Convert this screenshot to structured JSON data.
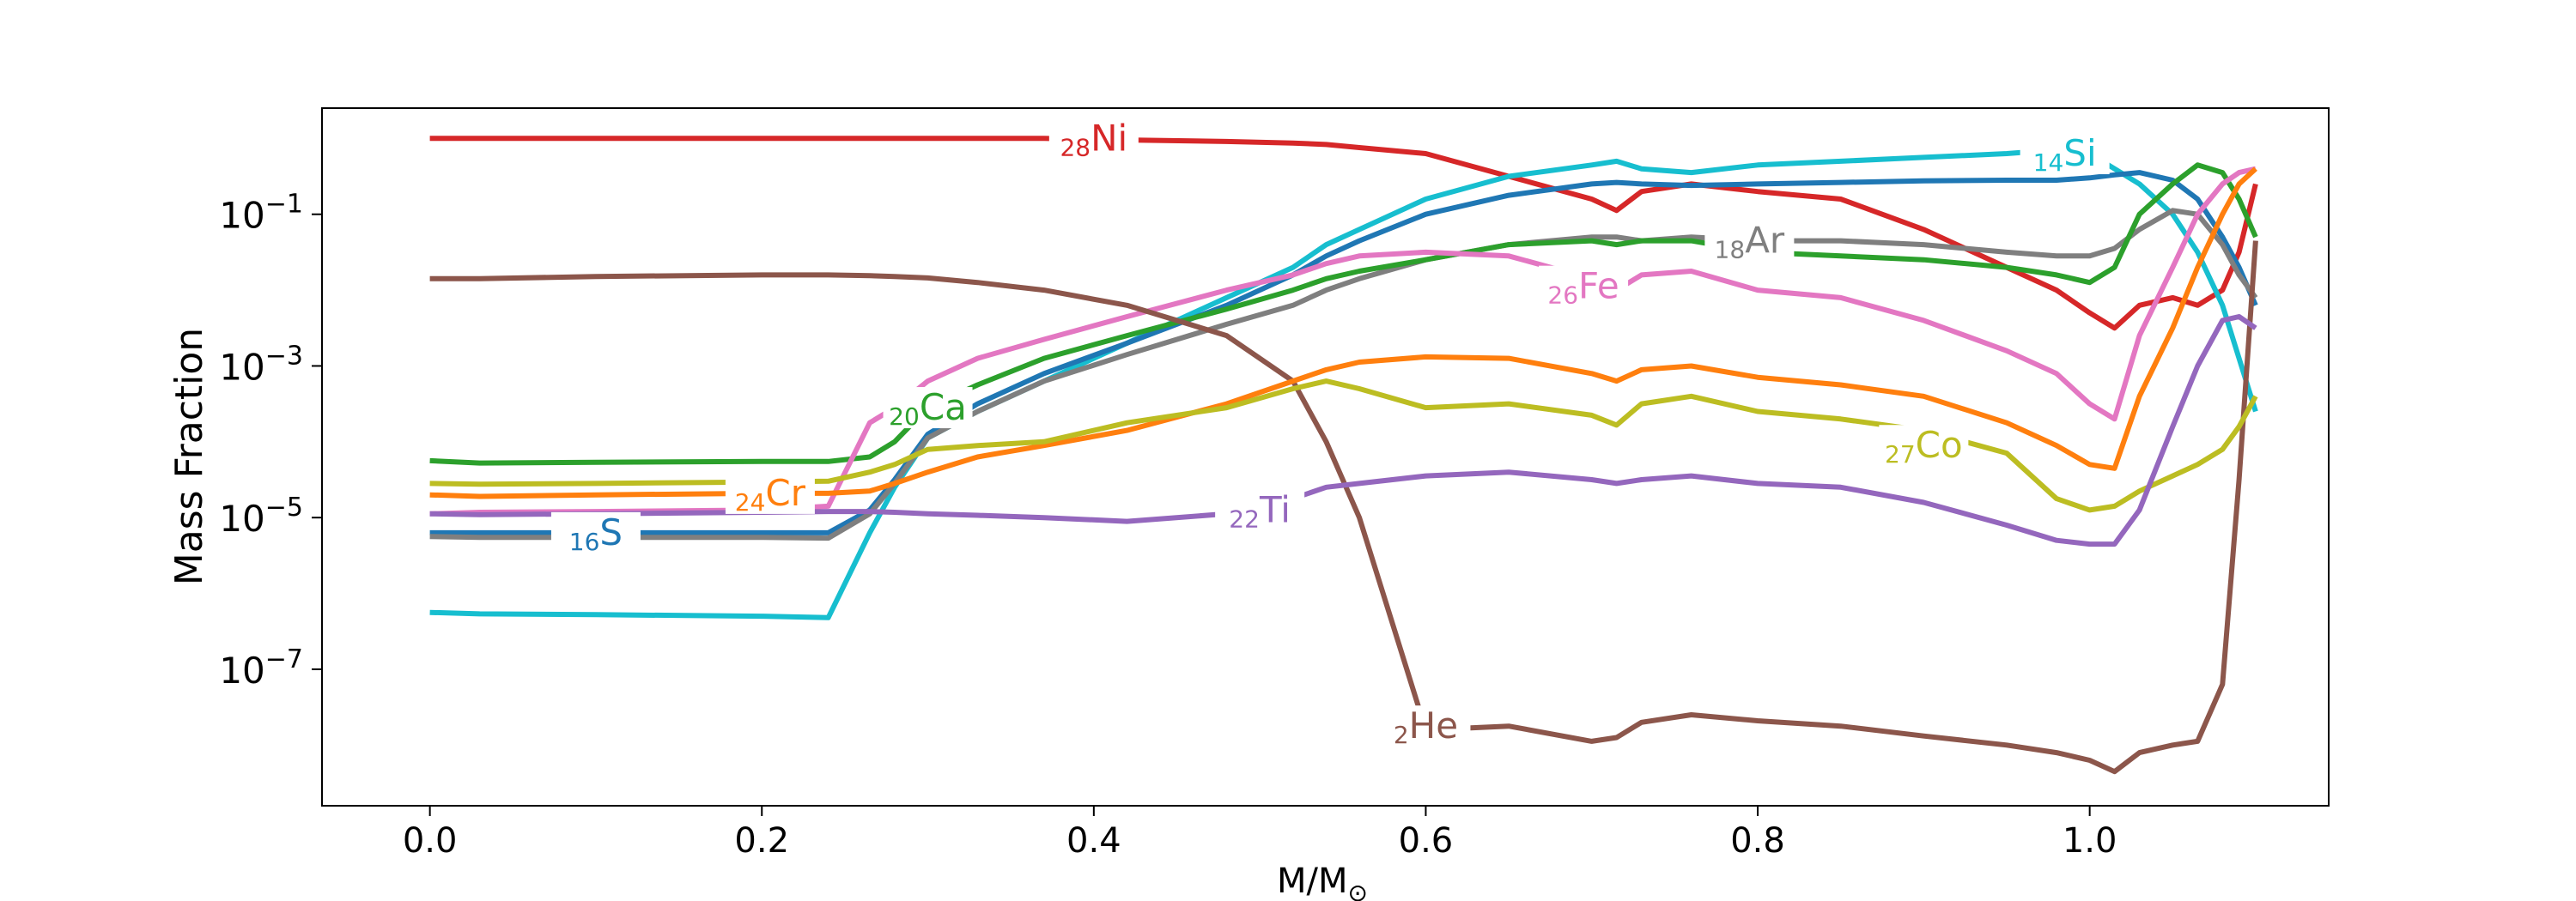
{
  "chart_data": {
    "type": "line",
    "title": "",
    "xlabel": "M/M",
    "xlabel_sub": "⊙",
    "ylabel": "Mass Fraction",
    "yscale": "log",
    "xlim": [
      -0.065,
      1.144
    ],
    "ylim_exp": [
      -8.8,
      0.4
    ],
    "grid": false,
    "x_ticks": [
      0.0,
      0.2,
      0.4,
      0.6,
      0.8,
      1.0
    ],
    "x_tick_labels": [
      "0.0",
      "0.2",
      "0.4",
      "0.6",
      "0.8",
      "1.0"
    ],
    "y_ticks_exp": [
      -1,
      -3,
      -5,
      -7
    ],
    "y_tick_base": "10",
    "y_tick_exps": [
      "−1",
      "−3",
      "−5",
      "−7"
    ],
    "x": [
      0.0,
      0.03,
      0.1,
      0.2,
      0.24,
      0.265,
      0.28,
      0.3,
      0.33,
      0.37,
      0.42,
      0.48,
      0.52,
      0.54,
      0.56,
      0.6,
      0.65,
      0.7,
      0.715,
      0.73,
      0.76,
      0.8,
      0.85,
      0.9,
      0.95,
      0.98,
      1.0,
      1.015,
      1.03,
      1.05,
      1.065,
      1.08,
      1.09,
      1.1
    ],
    "series": [
      {
        "name": "Ni",
        "sym": "Ni",
        "z": "28",
        "color": "#d62728",
        "values": [
          0.0,
          0.0,
          0.0,
          0.0,
          0.0,
          0.0,
          0.0,
          0.0,
          0.0,
          0.0,
          -0.02,
          -0.04,
          -0.06,
          -0.08,
          -0.12,
          -0.2,
          -0.5,
          -0.8,
          -0.95,
          -0.7,
          -0.6,
          -0.7,
          -0.8,
          -1.2,
          -1.7,
          -2.0,
          -2.3,
          -2.5,
          -2.2,
          -2.1,
          -2.2,
          -2.0,
          -1.5,
          -0.6
        ]
      },
      {
        "name": "Si",
        "sym": "Si",
        "z": "14",
        "color": "#17becf",
        "values": [
          -6.25,
          -6.27,
          -6.28,
          -6.3,
          -6.32,
          -5.2,
          -4.6,
          -3.95,
          -3.6,
          -3.2,
          -2.7,
          -2.1,
          -1.7,
          -1.4,
          -1.2,
          -0.8,
          -0.5,
          -0.35,
          -0.3,
          -0.4,
          -0.45,
          -0.35,
          -0.3,
          -0.25,
          -0.2,
          -0.15,
          -0.2,
          -0.4,
          -0.6,
          -1.0,
          -1.5,
          -2.2,
          -2.9,
          -3.6
        ]
      },
      {
        "name": "S",
        "sym": "S",
        "z": "16",
        "color": "#1f77b4",
        "values": [
          -5.2,
          -5.2,
          -5.2,
          -5.2,
          -5.2,
          -4.9,
          -4.5,
          -3.9,
          -3.5,
          -3.1,
          -2.7,
          -2.2,
          -1.8,
          -1.55,
          -1.35,
          -1.0,
          -0.75,
          -0.6,
          -0.58,
          -0.6,
          -0.62,
          -0.6,
          -0.58,
          -0.56,
          -0.55,
          -0.55,
          -0.52,
          -0.48,
          -0.45,
          -0.55,
          -0.8,
          -1.3,
          -1.7,
          -2.2
        ]
      },
      {
        "name": "Ar",
        "sym": "Ar",
        "z": "18",
        "color": "#7f7f7f",
        "values": [
          -5.25,
          -5.26,
          -5.26,
          -5.26,
          -5.27,
          -4.95,
          -4.55,
          -3.95,
          -3.6,
          -3.2,
          -2.85,
          -2.45,
          -2.2,
          -2.0,
          -1.85,
          -1.6,
          -1.4,
          -1.3,
          -1.3,
          -1.35,
          -1.3,
          -1.35,
          -1.35,
          -1.4,
          -1.5,
          -1.55,
          -1.55,
          -1.45,
          -1.2,
          -0.95,
          -1.0,
          -1.4,
          -1.8,
          -2.1
        ]
      },
      {
        "name": "Ca",
        "sym": "Ca",
        "z": "20",
        "color": "#2ca02c",
        "values": [
          -4.25,
          -4.28,
          -4.27,
          -4.26,
          -4.26,
          -4.2,
          -4.0,
          -3.55,
          -3.25,
          -2.9,
          -2.6,
          -2.25,
          -2.0,
          -1.85,
          -1.75,
          -1.6,
          -1.4,
          -1.35,
          -1.4,
          -1.35,
          -1.35,
          -1.5,
          -1.55,
          -1.6,
          -1.7,
          -1.8,
          -1.9,
          -1.7,
          -1.0,
          -0.6,
          -0.35,
          -0.45,
          -0.8,
          -1.3
        ]
      },
      {
        "name": "Fe",
        "sym": "Fe",
        "z": "26",
        "color": "#e377c2",
        "values": [
          -4.95,
          -4.93,
          -4.92,
          -4.9,
          -4.85,
          -3.75,
          -3.55,
          -3.2,
          -2.9,
          -2.65,
          -2.35,
          -2.0,
          -1.8,
          -1.65,
          -1.55,
          -1.5,
          -1.55,
          -1.85,
          -2.0,
          -1.8,
          -1.75,
          -2.0,
          -2.1,
          -2.4,
          -2.8,
          -3.1,
          -3.5,
          -3.7,
          -2.6,
          -1.7,
          -1.0,
          -0.6,
          -0.45,
          -0.4
        ]
      },
      {
        "name": "He",
        "sym": "He",
        "z": "2",
        "color": "#8c564b",
        "values": [
          -1.85,
          -1.85,
          -1.82,
          -1.8,
          -1.8,
          -1.81,
          -1.82,
          -1.84,
          -1.9,
          -2.0,
          -2.2,
          -2.6,
          -3.2,
          -4.0,
          -5.0,
          -7.8,
          -7.75,
          -7.95,
          -7.9,
          -7.7,
          -7.6,
          -7.68,
          -7.75,
          -7.88,
          -8.0,
          -8.1,
          -8.2,
          -8.35,
          -8.1,
          -8.0,
          -7.95,
          -7.2,
          -4.5,
          -1.35
        ]
      },
      {
        "name": "Cr",
        "sym": "Cr",
        "z": "24",
        "color": "#ff7f0e",
        "values": [
          -4.7,
          -4.72,
          -4.7,
          -4.68,
          -4.68,
          -4.65,
          -4.55,
          -4.4,
          -4.2,
          -4.05,
          -3.85,
          -3.5,
          -3.2,
          -3.05,
          -2.95,
          -2.88,
          -2.9,
          -3.1,
          -3.2,
          -3.05,
          -3.0,
          -3.15,
          -3.25,
          -3.4,
          -3.75,
          -4.05,
          -4.3,
          -4.35,
          -3.4,
          -2.5,
          -1.7,
          -1.0,
          -0.6,
          -0.4
        ]
      },
      {
        "name": "Co",
        "sym": "Co",
        "z": "27",
        "color": "#bcbd22",
        "values": [
          -4.55,
          -4.56,
          -4.55,
          -4.53,
          -4.52,
          -4.4,
          -4.3,
          -4.1,
          -4.05,
          -4.0,
          -3.75,
          -3.55,
          -3.3,
          -3.2,
          -3.3,
          -3.55,
          -3.5,
          -3.65,
          -3.78,
          -3.5,
          -3.4,
          -3.6,
          -3.7,
          -3.85,
          -4.15,
          -4.75,
          -4.9,
          -4.85,
          -4.65,
          -4.45,
          -4.3,
          -4.1,
          -3.8,
          -3.4
        ]
      },
      {
        "name": "Ti",
        "sym": "Ti",
        "z": "22",
        "color": "#9467bd",
        "values": [
          -4.95,
          -4.96,
          -4.95,
          -4.93,
          -4.92,
          -4.92,
          -4.93,
          -4.95,
          -4.97,
          -5.0,
          -5.05,
          -4.95,
          -4.75,
          -4.6,
          -4.55,
          -4.45,
          -4.4,
          -4.5,
          -4.55,
          -4.5,
          -4.45,
          -4.55,
          -4.6,
          -4.8,
          -5.1,
          -5.3,
          -5.35,
          -5.35,
          -4.9,
          -3.8,
          -3.0,
          -2.4,
          -2.35,
          -2.5
        ]
      }
    ],
    "labels": [
      {
        "series": "Ni",
        "x": 0.4,
        "y_exp": 0.0
      },
      {
        "series": "Si",
        "x": 0.985,
        "y_exp": -0.2
      },
      {
        "series": "Ar",
        "x": 0.795,
        "y_exp": -1.35
      },
      {
        "series": "Fe",
        "x": 0.695,
        "y_exp": -1.95
      },
      {
        "series": "Ca",
        "x": 0.3,
        "y_exp": -3.55
      },
      {
        "series": "Co",
        "x": 0.9,
        "y_exp": -4.05
      },
      {
        "series": "Cr",
        "x": 0.205,
        "y_exp": -4.68
      },
      {
        "series": "Ti",
        "x": 0.5,
        "y_exp": -4.9
      },
      {
        "series": "S",
        "x": 0.1,
        "y_exp": -5.2
      },
      {
        "series": "He",
        "x": 0.6,
        "y_exp": -7.75
      }
    ]
  }
}
